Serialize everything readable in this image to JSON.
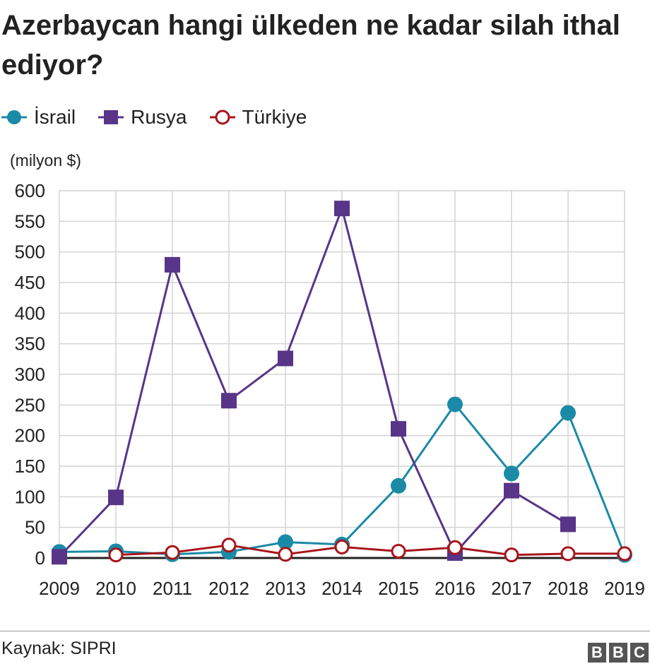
{
  "title": "Azerbaycan hangi ülkeden ne kadar silah ithal ediyor?",
  "unit_label": "(milyon $)",
  "source": "Kaynak: SIPRI",
  "logo": [
    "B",
    "B",
    "C"
  ],
  "legend": [
    {
      "label": "İsrail",
      "marker": "filled-circle",
      "color": "#1a8aa6"
    },
    {
      "label": "Rusya",
      "marker": "filled-square",
      "color": "#583588"
    },
    {
      "label": "Türkiye",
      "marker": "hollow-circle",
      "color": "#a8151b"
    }
  ],
  "chart_data": {
    "type": "line",
    "title": "Azerbaycan hangi ülkeden ne kadar silah ithal ediyor?",
    "xlabel": "",
    "ylabel": "(milyon $)",
    "categories": [
      "2009",
      "2010",
      "2011",
      "2012",
      "2013",
      "2014",
      "2015",
      "2016",
      "2017",
      "2018",
      "2019"
    ],
    "yticks": [
      0,
      50,
      100,
      150,
      200,
      250,
      300,
      350,
      400,
      450,
      500,
      550,
      600
    ],
    "ylim": [
      0,
      600
    ],
    "grid": true,
    "legend_position": "top-left",
    "series": [
      {
        "name": "İsrail",
        "color": "#1a8aa6",
        "marker": "filled-circle",
        "values": [
          10,
          11,
          6,
          10,
          26,
          22,
          118,
          251,
          138,
          237,
          5
        ]
      },
      {
        "name": "Rusya",
        "color": "#583588",
        "marker": "filled-square",
        "values": [
          2,
          99,
          479,
          257,
          326,
          571,
          211,
          8,
          110,
          55,
          null
        ]
      },
      {
        "name": "Türkiye",
        "color": "#a8151b",
        "marker": "hollow-circle",
        "values": [
          null,
          5,
          9,
          21,
          6,
          18,
          11,
          17,
          5,
          7,
          7
        ]
      }
    ]
  }
}
